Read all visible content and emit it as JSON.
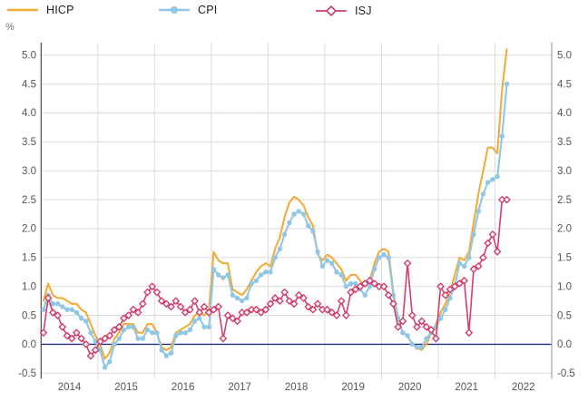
{
  "axis_unit": "%",
  "legend": {
    "items": [
      {
        "label": "HICP",
        "color": "#F0AD3C",
        "marker": "line"
      },
      {
        "label": "CPI",
        "color": "#8FC7E4",
        "marker": "circle"
      },
      {
        "label": "ISJ",
        "color": "#D23F6B",
        "marker": "diamond"
      }
    ]
  },
  "chart_data": {
    "type": "line",
    "title": "",
    "xlabel": "",
    "ylabel": "%",
    "x_years": [
      "2014",
      "2015",
      "2016",
      "2017",
      "2018",
      "2019",
      "2020",
      "2021",
      "2022"
    ],
    "x_frequency": "monthly",
    "x_start": "2014-01",
    "x_end": "2022-03",
    "ylim": [
      -0.5,
      5.0
    ],
    "ytick_step": 0.5,
    "y_tick_labels": [
      "5.0",
      "4.5",
      "4.0",
      "3.5",
      "3.0",
      "2.5",
      "2.0",
      "1.5",
      "1.0",
      "0.5",
      "0.0",
      "-0.5"
    ],
    "grid": true,
    "legend_position": "top",
    "zero_line_color": "#27357E",
    "grid_color": "#DCDCDC",
    "axis_label_color": "#555555",
    "left_axis_color": "#4A4A4A",
    "right_axis_color": "#9B9B9B",
    "series": [
      {
        "name": "HICP",
        "color": "#F0AD3C",
        "marker": "none",
        "values": [
          0.75,
          1.05,
          0.85,
          0.8,
          0.8,
          0.75,
          0.7,
          0.7,
          0.6,
          0.55,
          0.35,
          0.15,
          0.0,
          -0.25,
          -0.15,
          0.1,
          0.2,
          0.35,
          0.35,
          0.35,
          0.2,
          0.2,
          0.35,
          0.35,
          0.2,
          -0.05,
          -0.1,
          -0.05,
          0.2,
          0.25,
          0.3,
          0.35,
          0.5,
          0.55,
          0.5,
          0.6,
          1.6,
          1.45,
          1.4,
          1.4,
          0.95,
          0.9,
          0.85,
          0.95,
          1.1,
          1.25,
          1.35,
          1.4,
          1.35,
          1.65,
          1.85,
          2.2,
          2.45,
          2.55,
          2.5,
          2.4,
          2.2,
          2.05,
          1.55,
          1.45,
          1.55,
          1.5,
          1.4,
          1.3,
          1.1,
          1.2,
          1.2,
          1.1,
          1.0,
          1.1,
          1.4,
          1.6,
          1.65,
          1.6,
          0.9,
          0.45,
          0.2,
          0.15,
          0.0,
          -0.05,
          -0.1,
          0.0,
          0.2,
          0.35,
          0.55,
          0.7,
          0.9,
          1.2,
          1.5,
          1.45,
          1.6,
          2.1,
          2.6,
          3.0,
          3.4,
          3.4,
          3.3,
          4.4,
          5.1
        ]
      },
      {
        "name": "CPI",
        "color": "#8FC7E4",
        "marker": "circle",
        "values": [
          0.6,
          0.85,
          0.7,
          0.7,
          0.65,
          0.6,
          0.6,
          0.55,
          0.45,
          0.4,
          0.2,
          0.05,
          -0.1,
          -0.4,
          -0.3,
          0.0,
          0.1,
          0.25,
          0.3,
          0.3,
          0.1,
          0.1,
          0.25,
          0.2,
          0.2,
          -0.1,
          -0.2,
          -0.15,
          0.15,
          0.2,
          0.2,
          0.25,
          0.4,
          0.45,
          0.3,
          0.3,
          1.3,
          1.2,
          1.15,
          1.2,
          0.85,
          0.8,
          0.75,
          0.8,
          1.05,
          1.1,
          1.2,
          1.25,
          1.25,
          1.5,
          1.65,
          1.9,
          2.1,
          2.25,
          2.3,
          2.25,
          2.05,
          1.95,
          1.6,
          1.35,
          1.45,
          1.4,
          1.25,
          1.2,
          1.0,
          1.05,
          1.05,
          0.95,
          0.85,
          1.0,
          1.3,
          1.5,
          1.55,
          1.5,
          0.85,
          0.45,
          0.2,
          0.15,
          0.0,
          -0.05,
          -0.05,
          0.1,
          0.2,
          0.3,
          0.45,
          0.6,
          0.8,
          1.0,
          1.4,
          1.35,
          1.5,
          1.9,
          2.3,
          2.6,
          2.8,
          2.85,
          2.9,
          3.6,
          4.5
        ]
      },
      {
        "name": "ISJ",
        "color": "#D23F6B",
        "marker": "diamond",
        "values": [
          0.2,
          0.8,
          0.55,
          0.5,
          0.3,
          0.15,
          0.1,
          0.2,
          0.1,
          0.0,
          -0.2,
          -0.1,
          0.05,
          0.1,
          0.15,
          0.25,
          0.3,
          0.45,
          0.5,
          0.6,
          0.55,
          0.7,
          0.9,
          1.0,
          0.9,
          0.75,
          0.7,
          0.65,
          0.75,
          0.65,
          0.55,
          0.6,
          0.75,
          0.55,
          0.65,
          0.55,
          0.6,
          0.65,
          0.1,
          0.5,
          0.45,
          0.4,
          0.55,
          0.55,
          0.6,
          0.6,
          0.55,
          0.6,
          0.7,
          0.8,
          0.75,
          0.9,
          0.75,
          0.7,
          0.85,
          0.8,
          0.65,
          0.6,
          0.7,
          0.6,
          0.6,
          0.55,
          0.5,
          0.75,
          0.5,
          0.9,
          0.95,
          1.0,
          1.05,
          1.1,
          1.05,
          1.0,
          1.0,
          0.85,
          0.7,
          0.3,
          0.4,
          1.4,
          0.5,
          0.3,
          0.4,
          0.3,
          0.25,
          0.1,
          1.0,
          0.85,
          0.95,
          1.0,
          1.05,
          1.1,
          0.2,
          1.3,
          1.35,
          1.5,
          1.75,
          1.9,
          1.6,
          2.5,
          2.5
        ]
      }
    ]
  }
}
